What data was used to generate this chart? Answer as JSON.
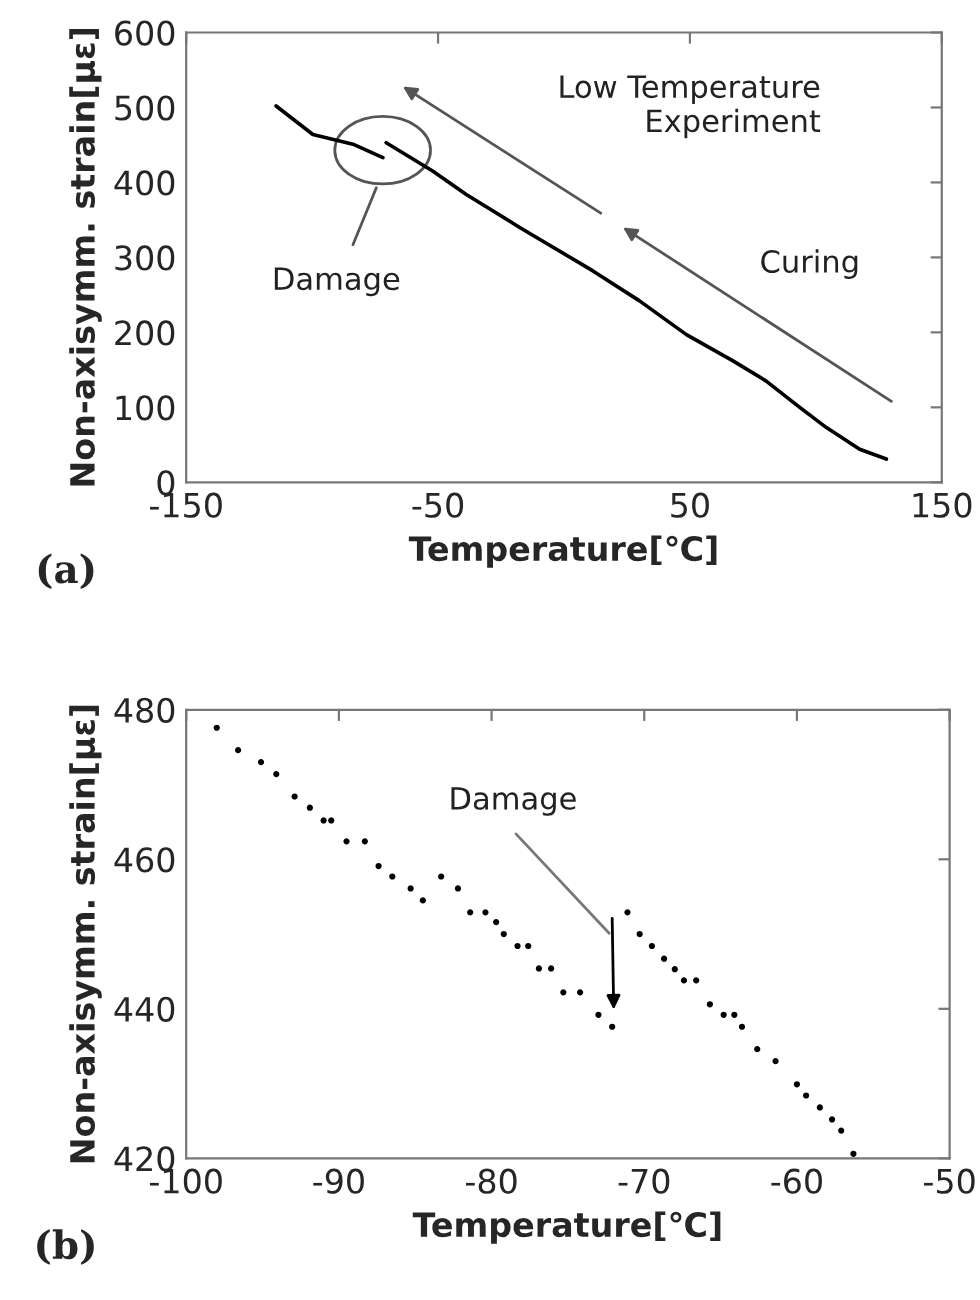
{
  "chart_data": [
    {
      "type": "line",
      "xlabel": "Temperature[℃]",
      "ylabel": "Non-axisymm. strain[με]",
      "x": [
        -114.3,
        -99.7,
        -83.8,
        -71.9,
        null,
        -70.6,
        -52,
        -38.8,
        -17.6,
        11.5,
        30,
        48.6,
        67.1,
        80.3,
        93.6,
        104.2,
        117.4,
        128
      ],
      "series": [
        {
          "color": "#000000",
          "values": [
            502,
            464,
            451,
            433,
            null,
            453,
            415,
            384,
            340,
            282,
            242,
            197,
            162,
            135,
            100,
            73,
            44,
            31
          ]
        }
      ],
      "xlim": [
        -150,
        150
      ],
      "xticks": [
        -150,
        -50,
        50,
        150
      ],
      "ylim": [
        0,
        600
      ],
      "yticks": [
        0,
        100,
        200,
        300,
        400,
        500,
        600
      ],
      "grid": false,
      "legend": false,
      "marker": "none",
      "line_style": "solid",
      "annotations": [
        "Low Temperature\nExperiment",
        "Curing",
        "Damage",
        "(a)"
      ]
    },
    {
      "type": "scatter",
      "xlabel": "Temperature[℃]",
      "ylabel": "Non-axisymm. strain[με]",
      "x": [
        -98.0,
        -96.6,
        -95.1,
        -94.1,
        -92.9,
        -91.9,
        -91.0,
        -90.5,
        -89.5,
        -88.3,
        -87.4,
        -86.5,
        -85.3,
        -84.5,
        -83.3,
        -82.2,
        -81.4,
        -80.4,
        -79.7,
        -79.2,
        -78.3,
        -77.6,
        -76.9,
        -76.1,
        -75.3,
        -74.2,
        -73.0,
        -72.1,
        -71.1,
        -70.3,
        -69.5,
        -68.7,
        -68.0,
        -67.4,
        -66.6,
        -65.7,
        -64.8,
        -64.1,
        -63.6,
        -62.6,
        -61.4,
        -60.0,
        -59.4,
        -58.5,
        -57.7,
        -57.1,
        -56.3
      ],
      "series": [
        {
          "color": "#000000",
          "values": [
            477.6,
            474.6,
            473.0,
            471.4,
            468.4,
            466.9,
            465.2,
            465.2,
            462.4,
            462.4,
            459.1,
            457.7,
            456.1,
            454.5,
            457.7,
            456.1,
            452.9,
            452.9,
            451.6,
            450.0,
            448.4,
            448.4,
            445.4,
            445.4,
            442.2,
            442.2,
            439.2,
            437.6,
            452.9,
            450.0,
            448.4,
            446.7,
            445.3,
            443.8,
            443.8,
            440.6,
            439.2,
            439.2,
            437.6,
            434.6,
            433.0,
            429.9,
            428.4,
            426.8,
            425.2,
            423.7,
            420.6
          ]
        }
      ],
      "xlim": [
        -100,
        -50
      ],
      "xticks": [
        -100,
        -90,
        -80,
        -70,
        -60,
        -50
      ],
      "ylim": [
        420,
        480
      ],
      "yticks": [
        420,
        440,
        460,
        480
      ],
      "grid": false,
      "legend": false,
      "marker": "circle",
      "annotations": [
        "Damage",
        "(b)"
      ]
    }
  ]
}
